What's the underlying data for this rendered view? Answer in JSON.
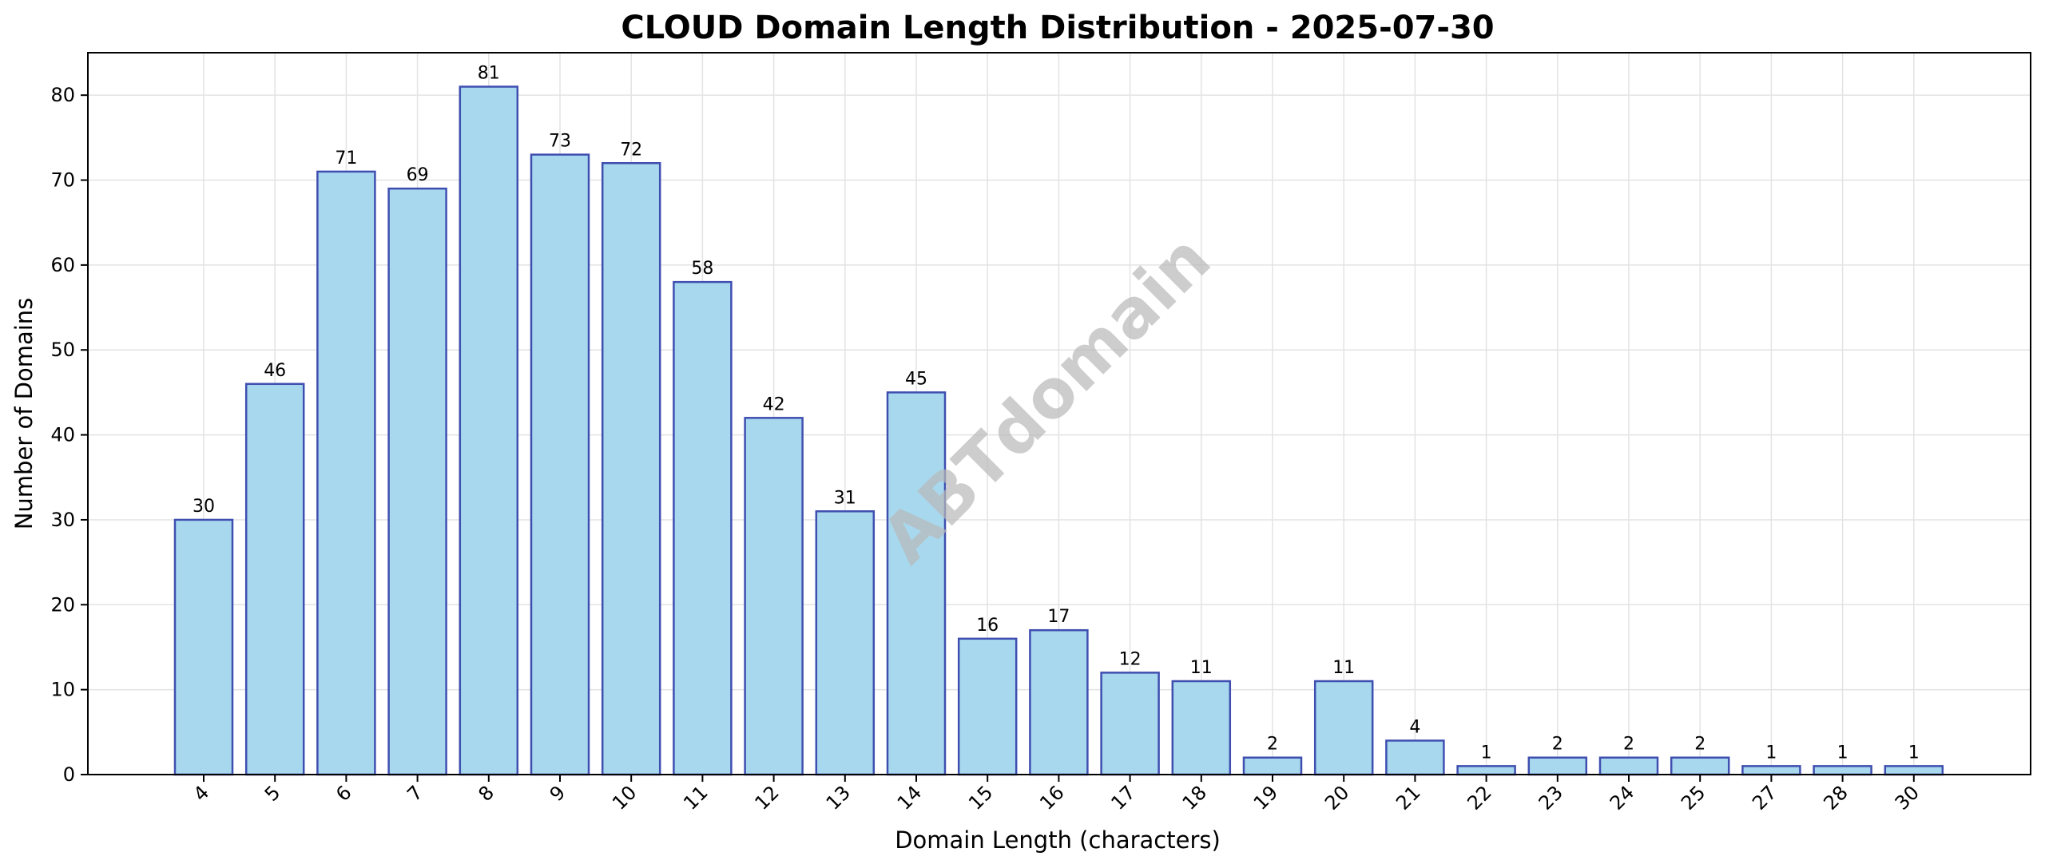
{
  "chart_data": {
    "type": "bar",
    "title": "CLOUD Domain Length Distribution - 2025-07-30",
    "xlabel": "Domain Length (characters)",
    "ylabel": "Number of Domains",
    "categories": [
      "4",
      "5",
      "6",
      "7",
      "8",
      "9",
      "10",
      "11",
      "12",
      "13",
      "14",
      "15",
      "16",
      "17",
      "18",
      "19",
      "20",
      "21",
      "22",
      "23",
      "24",
      "25",
      "27",
      "28",
      "30"
    ],
    "values": [
      30,
      46,
      71,
      69,
      81,
      73,
      72,
      58,
      42,
      31,
      45,
      16,
      17,
      12,
      11,
      2,
      11,
      4,
      1,
      2,
      2,
      2,
      1,
      1,
      1
    ],
    "ylim": [
      0,
      85
    ],
    "yticks": [
      0,
      10,
      20,
      30,
      40,
      50,
      60,
      70,
      80
    ],
    "grid": true,
    "bar_color": "#a8d8ee",
    "bar_edge_color": "#3f4fb0",
    "watermark": "ABTdomain"
  }
}
